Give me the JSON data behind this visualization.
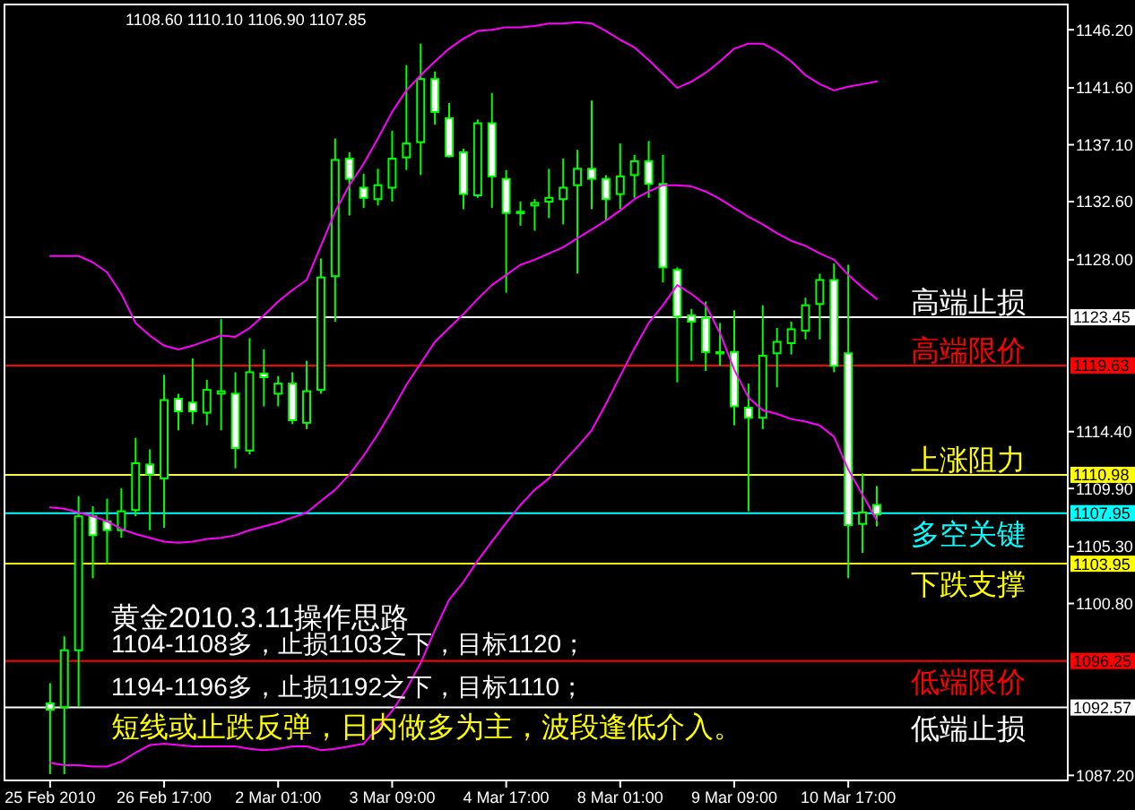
{
  "chart_data": {
    "type": "candlestick",
    "title": "1108.60 1110.10 1106.90 1107.85",
    "categories": [
      "25 Feb 2010",
      null,
      null,
      null,
      null,
      null,
      null,
      null,
      "26 Feb 17:00",
      null,
      null,
      null,
      null,
      null,
      null,
      null,
      "2 Mar 01:00",
      null,
      null,
      null,
      null,
      null,
      null,
      null,
      "3 Mar 09:00",
      null,
      null,
      null,
      null,
      null,
      null,
      null,
      "4 Mar 17:00",
      null,
      null,
      null,
      null,
      null,
      null,
      null,
      "8 Mar 01:00",
      null,
      null,
      null,
      null,
      null,
      null,
      null,
      "9 Mar 09:00",
      null,
      null,
      null,
      null,
      null,
      null,
      null,
      "10 Mar 17:00",
      null,
      null
    ],
    "ohlc": [
      [
        1092.9,
        1094.5,
        1087.3,
        1092.4
      ],
      [
        1092.6,
        1098.2,
        1087.3,
        1097.1
      ],
      [
        1097.1,
        1109.3,
        1092.6,
        1107.7
      ],
      [
        1107.7,
        1108.5,
        1102.8,
        1106.2
      ],
      [
        1107.3,
        1109.1,
        1103.9,
        1106.6
      ],
      [
        1106.6,
        1109.9,
        1106.0,
        1108.1
      ],
      [
        1108.2,
        1113.9,
        1107.7,
        1111.9
      ],
      [
        1111.8,
        1113.0,
        1106.6,
        1111.0
      ],
      [
        1110.7,
        1118.9,
        1106.8,
        1116.9
      ],
      [
        1117.0,
        1117.4,
        1114.5,
        1116.0
      ],
      [
        1116.7,
        1120.2,
        1115.0,
        1116.0
      ],
      [
        1115.9,
        1118.5,
        1114.9,
        1117.7
      ],
      [
        1117.4,
        1123.3,
        1114.5,
        1117.6
      ],
      [
        1117.4,
        1119.1,
        1111.5,
        1113.1
      ],
      [
        1112.9,
        1121.8,
        1112.6,
        1119.1
      ],
      [
        1119.0,
        1120.9,
        1116.4,
        1118.7
      ],
      [
        1117.4,
        1118.8,
        1116.4,
        1118.2
      ],
      [
        1118.2,
        1119.1,
        1115.0,
        1115.3
      ],
      [
        1115.1,
        1120.0,
        1114.6,
        1117.6
      ],
      [
        1117.7,
        1128.1,
        1117.4,
        1126.6
      ],
      [
        1126.7,
        1137.6,
        1123.1,
        1135.9
      ],
      [
        1136.0,
        1136.5,
        1131.5,
        1134.4
      ],
      [
        1133.7,
        1134.8,
        1132.1,
        1132.9
      ],
      [
        1132.8,
        1135.2,
        1132.3,
        1133.9
      ],
      [
        1133.7,
        1138.2,
        1132.6,
        1136.0
      ],
      [
        1136.1,
        1143.4,
        1135.1,
        1137.2
      ],
      [
        1137.3,
        1145.1,
        1134.7,
        1142.3
      ],
      [
        1142.3,
        1142.9,
        1138.7,
        1139.7
      ],
      [
        1139.2,
        1140.4,
        1136.1,
        1136.2
      ],
      [
        1136.5,
        1136.8,
        1132.0,
        1133.2
      ],
      [
        1133.1,
        1139.1,
        1132.9,
        1138.8
      ],
      [
        1138.8,
        1141.2,
        1132.1,
        1134.6
      ],
      [
        1134.4,
        1135.1,
        1125.4,
        1131.7
      ],
      [
        1131.7,
        1132.6,
        1130.7,
        1131.8
      ],
      [
        1132.3,
        1132.8,
        1130.3,
        1132.5
      ],
      [
        1132.6,
        1135.2,
        1131.3,
        1132.9
      ],
      [
        1132.8,
        1136.0,
        1130.8,
        1133.7
      ],
      [
        1133.9,
        1136.7,
        1126.9,
        1135.2
      ],
      [
        1135.2,
        1140.6,
        1132.0,
        1134.4
      ],
      [
        1134.4,
        1134.7,
        1131.1,
        1132.8
      ],
      [
        1133.2,
        1137.2,
        1132.0,
        1134.6
      ],
      [
        1134.7,
        1136.3,
        1132.9,
        1135.8
      ],
      [
        1135.8,
        1137.4,
        1132.9,
        1134.0
      ],
      [
        1134.0,
        1136.3,
        1126.2,
        1127.4
      ],
      [
        1127.2,
        1127.4,
        1118.3,
        1123.5
      ],
      [
        1123.6,
        1124.1,
        1120.0,
        1123.1
      ],
      [
        1123.4,
        1124.7,
        1119.2,
        1120.7
      ],
      [
        1120.7,
        1123.0,
        1119.6,
        1120.6
      ],
      [
        1120.7,
        1124.0,
        1114.9,
        1116.4
      ],
      [
        1116.3,
        1118.2,
        1108.1,
        1115.5
      ],
      [
        1115.5,
        1124.4,
        1114.6,
        1120.4
      ],
      [
        1120.6,
        1122.6,
        1117.9,
        1121.5
      ],
      [
        1121.4,
        1123.1,
        1120.5,
        1122.5
      ],
      [
        1122.4,
        1125.0,
        1121.7,
        1124.4
      ],
      [
        1124.5,
        1126.9,
        1121.7,
        1126.4
      ],
      [
        1126.4,
        1127.7,
        1119.1,
        1119.6
      ],
      [
        1120.6,
        1127.6,
        1102.8,
        1107.0
      ],
      [
        1107.1,
        1111.1,
        1104.8,
        1108.0
      ],
      [
        1108.6,
        1110.1,
        1106.9,
        1107.85
      ]
    ],
    "color": "#00ff00",
    "colors": [
      "#ffffff",
      "#000000",
      "#000000",
      "#ffffff",
      "#ffffff",
      "#000000",
      "#000000",
      "#ffffff",
      "#000000",
      "#ffffff",
      "#ffffff",
      "#000000",
      "#000000",
      "#ffffff",
      "#000000",
      "#ffffff",
      "#000000",
      "#ffffff",
      "#000000",
      "#000000",
      "#000000",
      "#ffffff",
      "#ffffff",
      "#000000",
      "#000000",
      "#000000",
      "#000000",
      "#ffffff",
      "#ffffff",
      "#ffffff",
      "#000000",
      "#ffffff",
      "#ffffff",
      "#000000",
      "#000000",
      "#000000",
      "#000000",
      "#000000",
      "#ffffff",
      "#ffffff",
      "#000000",
      "#000000",
      "#ffffff",
      "#ffffff",
      "#ffffff",
      "#ffffff",
      "#ffffff",
      "#ffffff",
      "#ffffff",
      "#ffffff",
      "#000000",
      "#000000",
      "#000000",
      "#000000",
      "#000000",
      "#ffffff",
      "#ffffff",
      "#000000",
      "#ffffff"
    ],
    "series": [
      {
        "type": "line",
        "color": "#ff00ff",
        "values": [
          1128.3,
          1128.3,
          1128.3,
          1127.8,
          1127.0,
          1125.3,
          1123.0,
          1122.0,
          1121.2,
          1120.9,
          1121.2,
          1121.6,
          1122.0,
          1121.9,
          1122.6,
          1123.6,
          1124.7,
          1125.6,
          1126.4,
          1129.1,
          1131.8,
          1133.9,
          1135.6,
          1137.6,
          1139.7,
          1141.4,
          1142.6,
          1143.7,
          1144.7,
          1145.5,
          1146.1,
          1146.2,
          1146.4,
          1146.4,
          1146.5,
          1146.7,
          1146.7,
          1146.8,
          1146.7,
          1146.1,
          1145.4,
          1144.8,
          1143.8,
          1142.7,
          1141.6,
          1142.1,
          1142.8,
          1143.7,
          1144.7,
          1145.1,
          1145.1,
          1144.5,
          1143.7,
          1142.6,
          1141.9,
          1141.4,
          1141.7,
          1141.9,
          1142.1
        ]
      },
      {
        "type": "line",
        "color": "#ff00ff",
        "values": [
          1108.4,
          1108.3,
          1108.0,
          1107.7,
          1107.3,
          1106.7,
          1106.3,
          1106.0,
          1105.7,
          1105.6,
          1105.7,
          1105.9,
          1106.0,
          1106.2,
          1106.6,
          1106.9,
          1107.2,
          1107.6,
          1108.0,
          1108.9,
          1109.8,
          1111.0,
          1112.5,
          1114.2,
          1116.1,
          1118.1,
          1119.8,
          1121.5,
          1122.6,
          1123.7,
          1124.9,
          1126.0,
          1126.8,
          1127.6,
          1128.0,
          1128.5,
          1129.0,
          1129.7,
          1130.4,
          1131.1,
          1131.9,
          1132.8,
          1133.4,
          1133.9,
          1133.9,
          1133.8,
          1133.4,
          1132.8,
          1132.1,
          1131.4,
          1130.8,
          1130.1,
          1129.5,
          1129.1,
          1128.5,
          1128.0,
          1126.8,
          1125.8,
          1124.9
        ]
      },
      {
        "type": "line",
        "color": "#ff00ff",
        "values": [
          1088.2,
          1088.0,
          1088.0,
          1087.9,
          1087.9,
          1088.3,
          1089.0,
          1089.6,
          1089.7,
          1089.6,
          1089.5,
          1089.5,
          1089.5,
          1089.5,
          1089.3,
          1089.2,
          1089.3,
          1089.5,
          1089.5,
          1089.2,
          1089.3,
          1089.5,
          1089.7,
          1091.0,
          1092.3,
          1094.0,
          1096.1,
          1098.7,
          1101.1,
          1102.5,
          1104.2,
          1105.7,
          1107.2,
          1108.6,
          1109.8,
          1110.7,
          1112.0,
          1113.2,
          1114.5,
          1116.6,
          1118.8,
          1121.0,
          1123.0,
          1124.4,
          1126.0,
          1125.3,
          1124.4,
          1122.2,
          1119.3,
          1117.1,
          1116.1,
          1115.8,
          1115.4,
          1115.2,
          1114.9,
          1114.0,
          1111.4,
          1109.4,
          1107.4
        ]
      }
    ],
    "ylim": [
      1086.8,
      1148.2
    ],
    "yticks": [
      {
        "value": 1146.2,
        "label": "1146.20"
      },
      {
        "value": 1141.6,
        "label": "1141.60"
      },
      {
        "value": 1137.1,
        "label": "1137.10"
      },
      {
        "value": 1132.6,
        "label": "1132.60"
      },
      {
        "value": 1128.0,
        "label": "1128.00"
      },
      {
        "value": 1114.4,
        "label": "1114.40"
      },
      {
        "value": 1109.9,
        "label": "1109.90"
      },
      {
        "value": 1105.3,
        "label": "1105.30"
      },
      {
        "value": 1100.8,
        "label": "1100.80"
      },
      {
        "value": 1087.2,
        "label": "1087.20"
      }
    ],
    "ref_lines": [
      {
        "axis": "y",
        "value": 1123.45,
        "label": "1123.45",
        "color": "#ffffff"
      },
      {
        "axis": "y",
        "value": 1119.63,
        "label": "1119.63",
        "color": "#ff0000"
      },
      {
        "axis": "y",
        "value": 1110.98,
        "label": "1110.98",
        "color": "#ffff00"
      },
      {
        "axis": "y",
        "value": 1107.95,
        "label": "1107.95",
        "color": "#00ffff"
      },
      {
        "axis": "y",
        "value": 1103.95,
        "label": "1103.95",
        "color": "#ffff00"
      },
      {
        "axis": "y",
        "value": 1096.25,
        "label": "1096.25",
        "color": "#ff0000"
      },
      {
        "axis": "y",
        "value": 1092.57,
        "label": "1092.57",
        "color": "#ffffff"
      }
    ],
    "annotations": [
      "黄金2010.3.11操作思路",
      "1104-1108多，止损1103之下，目标1120；",
      "1194-1196多，止损1192之下，目标1110；",
      "短线或止跌反弹，日内做多为主，波段逢低介入。",
      {
        "text": "高端止损",
        "y": 1123.45
      },
      {
        "text": "高端限价",
        "y": 1119.63
      },
      {
        "text": "上涨阻力",
        "y": 1110.98
      },
      {
        "text": "多空关键",
        "y": 1107.95
      },
      {
        "text": "下跌支撑",
        "y": 1103.95
      },
      {
        "text": "低端限价",
        "y": 1096.25
      },
      {
        "text": "低端止损",
        "y": 1092.57
      }
    ]
  }
}
